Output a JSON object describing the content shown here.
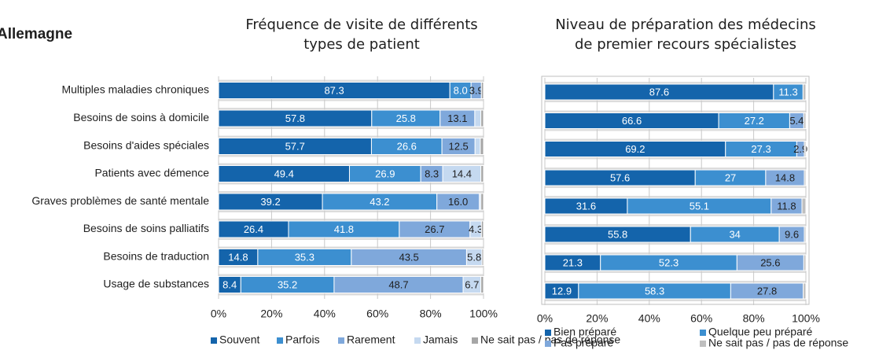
{
  "heading": "Allemagne",
  "chart_data": [
    {
      "type": "stacked-barh",
      "title": [
        "Fréquence de visite de différents",
        "types de patient"
      ],
      "categories": [
        "Multiples maladies chroniques",
        "Besoins de soins à domicile",
        "Besoins d'aides spéciales",
        "Patients avec démence",
        "Graves problèmes de santé mentale",
        "Besoins de soins palliatifs",
        "Besoins de traduction",
        "Usage de substances"
      ],
      "series": [
        {
          "name": "Souvent",
          "color": "#1464ab",
          "label_color": "#ffffff",
          "values": [
            87.3,
            57.8,
            57.7,
            49.4,
            39.2,
            26.4,
            14.8,
            8.4
          ],
          "value_labels": [
            "87.3",
            "57.8",
            "57.7",
            "49.4",
            "39.2",
            "26.4",
            "14.8",
            "8.4"
          ]
        },
        {
          "name": "Parfois",
          "color": "#3c8fd0",
          "label_color": "#ffffff",
          "values": [
            8.0,
            25.8,
            26.6,
            26.9,
            43.2,
            41.8,
            35.3,
            35.2
          ],
          "value_labels": [
            "8.0",
            "25.8",
            "26.6",
            "26.9",
            "43.2",
            "41.8",
            "35.3",
            "35.2"
          ]
        },
        {
          "name": "Rarement",
          "color": "#7fa8db",
          "label_color": "#1f1f1f",
          "values": [
            3.9,
            13.1,
            12.5,
            8.3,
            16.0,
            26.7,
            43.5,
            48.7
          ],
          "value_labels": [
            "3.9",
            "13.1",
            "12.5",
            "8.3",
            "16.0",
            "26.7",
            "43.5",
            "48.7"
          ]
        },
        {
          "name": "Jamais",
          "color": "#c5d9f0",
          "label_color": "#1f1f1f",
          "values": [
            0,
            2.3,
            2.0,
            14.4,
            0.6,
            4.3,
            5.8,
            6.7
          ],
          "value_labels": [
            null,
            null,
            null,
            "14.4",
            null,
            "4.3",
            "5.8",
            "6.7"
          ]
        },
        {
          "name": "Ne sait pas / pas de réponse",
          "color": "#a6a6a6",
          "label_color": "#1f1f1f",
          "values": [
            0.8,
            1.0,
            1.2,
            1.0,
            1.0,
            0.8,
            0.6,
            1.0
          ],
          "value_labels": [
            null,
            null,
            null,
            null,
            null,
            null,
            null,
            null
          ]
        }
      ],
      "xlim": [
        0,
        100
      ],
      "xticks": [
        {
          "value": 0,
          "label": "0%"
        },
        {
          "value": 20,
          "label": "20%"
        },
        {
          "value": 40,
          "label": "40%"
        },
        {
          "value": 60,
          "label": "60%"
        },
        {
          "value": 80,
          "label": "80%"
        },
        {
          "value": 100,
          "label": "100%"
        }
      ],
      "legend": "bottom"
    },
    {
      "type": "stacked-barh",
      "title": [
        "Niveau de préparation des médecins",
        "de premier recours spécialistes"
      ],
      "categories": [
        null,
        null,
        null,
        null,
        null,
        null,
        null,
        null
      ],
      "series": [
        {
          "name": "Bien préparé",
          "color": "#1464ab",
          "label_color": "#ffffff",
          "values": [
            87.6,
            66.6,
            69.2,
            57.6,
            31.6,
            55.8,
            21.3,
            12.9
          ],
          "value_labels": [
            "87.6",
            "66.6",
            "69.2",
            "57.6",
            "31.6",
            "55.8",
            "21.3",
            "12.9"
          ]
        },
        {
          "name": "Quelque peu préparé",
          "color": "#3c8fd0",
          "label_color": "#ffffff",
          "values": [
            11.3,
            27.2,
            27.3,
            27,
            55.1,
            34,
            52.3,
            58.3
          ],
          "value_labels": [
            "11.3",
            "27.2",
            "27.3",
            "27",
            "55.1",
            "34",
            "52.3",
            "58.3"
          ]
        },
        {
          "name": "Pas préparé",
          "color": "#7fa8db",
          "label_color": "#1f1f1f",
          "values": [
            0,
            5.4,
            2.9,
            14.8,
            11.8,
            9.6,
            25.6,
            27.8
          ],
          "value_labels": [
            null,
            "5.4",
            "2.9",
            "14.8",
            "11.8",
            "9.6",
            "25.6",
            "27.8"
          ]
        },
        {
          "name": "Ne sait pas / pas de réponse",
          "color": "#bfbfbf",
          "label_color": "#1f1f1f",
          "values": [
            1.1,
            0.8,
            0.6,
            0.6,
            1.5,
            0.6,
            0.8,
            1.0
          ],
          "value_labels": [
            null,
            null,
            null,
            null,
            null,
            null,
            null,
            null
          ]
        }
      ],
      "xlim": [
        0,
        100
      ],
      "xticks": [
        {
          "value": 0,
          "label": "0%"
        },
        {
          "value": 20,
          "label": "20%"
        },
        {
          "value": 40,
          "label": "40%"
        },
        {
          "value": 60,
          "label": "60%"
        },
        {
          "value": 80,
          "label": "80%"
        },
        {
          "value": 100,
          "label": "100%"
        }
      ],
      "legend": "bottom"
    }
  ]
}
